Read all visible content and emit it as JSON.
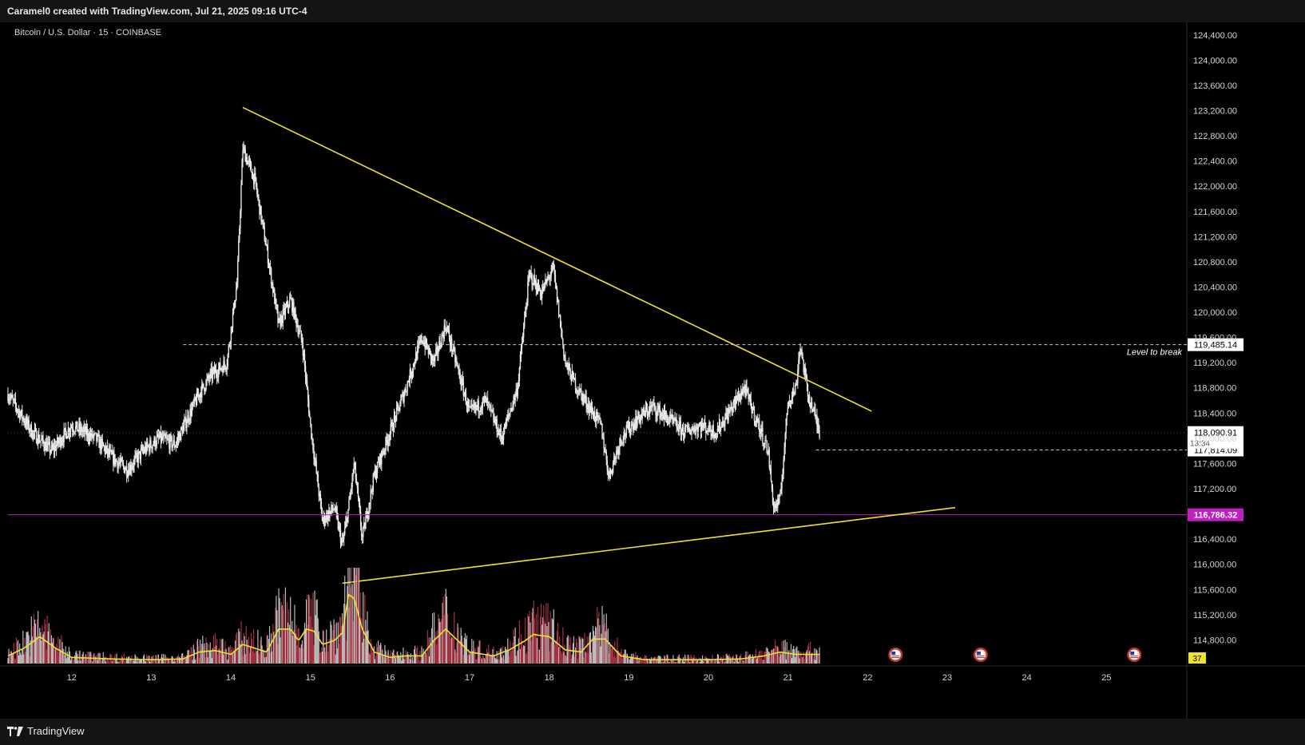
{
  "header": {
    "attribution": "Caramel0 created with TradingView.com, Jul 21, 2025 09:16 UTC-4"
  },
  "footer": {
    "brand": "TradingView"
  },
  "chart_data": {
    "type": "candlestick",
    "symbol_label": "Bitcoin / U.S. Dollar · 15 · COINBASE",
    "y_axis": {
      "ylim": [
        114400,
        124600
      ],
      "ticks": [
        124400,
        124000,
        123600,
        123200,
        122800,
        122400,
        122000,
        121600,
        121200,
        120800,
        120400,
        120000,
        119600,
        119200,
        118800,
        118400,
        118000,
        117600,
        117200,
        116400,
        116000,
        115600,
        115200,
        114800
      ],
      "tick_labels": [
        "124,400.00",
        "124,000.00",
        "123,600.00",
        "123,200.00",
        "122,800.00",
        "122,400.00",
        "122,000.00",
        "121,600.00",
        "121,200.00",
        "120,800.00",
        "120,400.00",
        "120,000.00",
        "119,600.00",
        "119,200.00",
        "118,800.00",
        "118,400.00",
        "118,000.00",
        "117,600.00",
        "117,200.00",
        "116,400.00",
        "116,000.00",
        "115,600.00",
        "115,200.00",
        "114,800.00"
      ]
    },
    "x_axis": {
      "xlim": [
        11.2,
        26.0
      ],
      "ticks": [
        12,
        13,
        14,
        15,
        16,
        17,
        18,
        19,
        20,
        21,
        22,
        23,
        24,
        25
      ],
      "tick_labels": [
        "12",
        "13",
        "14",
        "15",
        "16",
        "17",
        "18",
        "19",
        "20",
        "21",
        "22",
        "23",
        "24",
        "25"
      ]
    },
    "price_path": {
      "x": [
        11.2,
        11.5,
        11.75,
        12.0,
        12.3,
        12.5,
        12.7,
        12.9,
        13.1,
        13.3,
        13.45,
        13.6,
        13.75,
        13.95,
        14.08,
        14.15,
        14.3,
        14.45,
        14.6,
        14.75,
        14.9,
        15.0,
        15.15,
        15.3,
        15.4,
        15.48,
        15.55,
        15.65,
        15.8,
        16.0,
        16.2,
        16.4,
        16.55,
        16.7,
        16.85,
        17.0,
        17.2,
        17.4,
        17.6,
        17.75,
        17.9,
        18.05,
        18.2,
        18.35,
        18.5,
        18.65,
        18.75,
        18.9,
        19.1,
        19.3,
        19.5,
        19.7,
        19.9,
        20.1,
        20.3,
        20.45,
        20.6,
        20.75,
        20.82,
        20.9,
        21.0,
        21.1,
        21.15,
        21.25,
        21.35,
        21.4
      ],
      "price": [
        118700,
        118100,
        117800,
        118200,
        118000,
        117700,
        117500,
        117800,
        118000,
        117900,
        118300,
        118700,
        119000,
        119200,
        120500,
        122600,
        122100,
        121000,
        119800,
        120200,
        119500,
        118200,
        116700,
        116900,
        116300,
        116900,
        117600,
        116400,
        117400,
        118100,
        118800,
        119600,
        119200,
        119800,
        119100,
        118400,
        118600,
        118000,
        118800,
        120600,
        120300,
        120700,
        119200,
        118800,
        118500,
        118200,
        117400,
        118000,
        118300,
        118500,
        118300,
        118100,
        118200,
        118100,
        118500,
        118800,
        118300,
        117800,
        116900,
        117000,
        118600,
        118800,
        119500,
        118700,
        118300,
        118090.91
      ]
    },
    "trendlines": [
      {
        "name": "descending resistance",
        "x": [
          14.15,
          22.05
        ],
        "price": [
          123250,
          118430
        ],
        "color": "#f0e130"
      },
      {
        "name": "ascending support",
        "x": [
          15.4,
          23.1
        ],
        "price": [
          115700,
          116900
        ],
        "color": "#f0e130"
      }
    ],
    "levels": [
      {
        "price": 119485.14,
        "label": "119,485.14",
        "style": "dashed",
        "color": "#c8c8c8",
        "x_start": 13.4,
        "annotation": "Level to break"
      },
      {
        "price": 117814.09,
        "label": "117,814.09",
        "style": "dashed",
        "color": "#c8c8c8",
        "x_start": 21.35
      },
      {
        "price": 116786.32,
        "label": "116,786.32",
        "style": "solid",
        "color": "#c020c0",
        "x_start": 11.2
      }
    ],
    "last_price": {
      "value": 118090.91,
      "label": "118,090.91",
      "countdown": "13:34"
    },
    "volume": {
      "ma_x": [
        11.2,
        11.4,
        11.6,
        11.8,
        12.0,
        12.5,
        13.0,
        13.4,
        13.6,
        13.8,
        14.0,
        14.15,
        14.3,
        14.45,
        14.6,
        14.75,
        14.85,
        14.95,
        15.05,
        15.15,
        15.3,
        15.4,
        15.48,
        15.55,
        15.65,
        15.8,
        16.0,
        16.2,
        16.4,
        16.55,
        16.7,
        16.85,
        17.0,
        17.3,
        17.5,
        17.7,
        17.8,
        18.0,
        18.2,
        18.4,
        18.55,
        18.7,
        18.9,
        19.2,
        19.6,
        20.0,
        20.4,
        20.7,
        20.9,
        21.1,
        21.4
      ],
      "ma_level": [
        0.1,
        0.2,
        0.35,
        0.2,
        0.08,
        0.06,
        0.05,
        0.06,
        0.15,
        0.17,
        0.12,
        0.25,
        0.2,
        0.15,
        0.45,
        0.45,
        0.3,
        0.45,
        0.42,
        0.25,
        0.3,
        0.4,
        0.9,
        0.85,
        0.45,
        0.15,
        0.08,
        0.1,
        0.1,
        0.3,
        0.45,
        0.3,
        0.15,
        0.1,
        0.18,
        0.3,
        0.38,
        0.35,
        0.18,
        0.15,
        0.32,
        0.32,
        0.1,
        0.05,
        0.05,
        0.05,
        0.06,
        0.1,
        0.15,
        0.12,
        0.12
      ],
      "ma_color": "#f0e130",
      "bar_color": "#c03a4a",
      "badge": "37"
    },
    "event_markers": {
      "x": [
        22.35,
        23.42,
        25.35
      ],
      "icon": "us-flag-icon"
    },
    "colors": {
      "background": "#000000",
      "candles": "#e8e8e8",
      "axis_text": "#d1d4dc"
    }
  }
}
